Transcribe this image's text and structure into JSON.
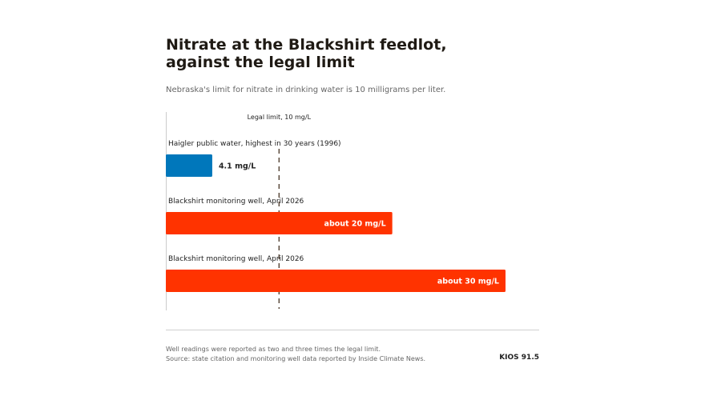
{
  "header": {
    "title_line1": "Nitrate at the Blackshirt feedlot,",
    "title_line2": "against the legal limit",
    "subtitle": "Nebraska's limit for nitrate in drinking water is 10 milligrams per liter."
  },
  "chart_data": {
    "type": "bar",
    "orientation": "horizontal",
    "categories": [
      "Haigler public water, highest in 30 years (1996)",
      "Blackshirt monitoring well, April 2026",
      "Blackshirt monitoring well, April 2026"
    ],
    "values": [
      4.1,
      20,
      30
    ],
    "value_labels": [
      "4.1 mg/L",
      "about 20 mg/L",
      "about 30 mg/L"
    ],
    "colors": [
      "#0077bb",
      "#ff3300",
      "#ff3300"
    ],
    "xlim": [
      0,
      30
    ],
    "reference_line": {
      "value": 10,
      "label": "Legal limit, 10 mg/L",
      "color": "#5a4a3c"
    },
    "xlabel": "",
    "ylabel": "",
    "grid": false,
    "legend": "none"
  },
  "footer": {
    "note": "Well readings were reported as two and three times the legal limit.",
    "source": "Source: state citation and monitoring well data reported by Inside Climate News.",
    "brand": "KIOS 91.5"
  }
}
